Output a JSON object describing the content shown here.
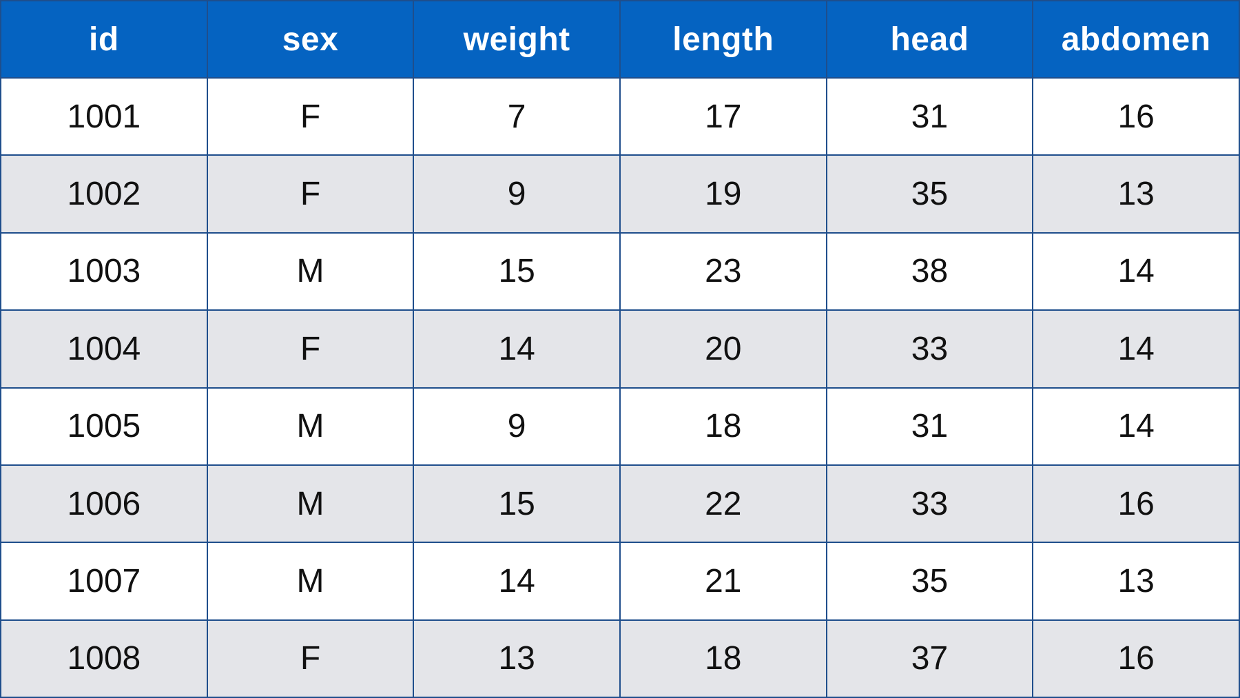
{
  "table": {
    "columns": [
      "id",
      "sex",
      "weight",
      "length",
      "head",
      "abdomen"
    ],
    "rows": [
      [
        "1001",
        "F",
        "7",
        "17",
        "31",
        "16"
      ],
      [
        "1002",
        "F",
        "9",
        "19",
        "35",
        "13"
      ],
      [
        "1003",
        "M",
        "15",
        "23",
        "38",
        "14"
      ],
      [
        "1004",
        "F",
        "14",
        "20",
        "33",
        "14"
      ],
      [
        "1005",
        "M",
        "9",
        "18",
        "31",
        "14"
      ],
      [
        "1006",
        "M",
        "15",
        "22",
        "33",
        "16"
      ],
      [
        "1007",
        "M",
        "14",
        "21",
        "35",
        "13"
      ],
      [
        "1008",
        "F",
        "13",
        "18",
        "37",
        "16"
      ]
    ]
  },
  "colors": {
    "header_bg": "#0563c1",
    "header_text": "#ffffff",
    "border": "#1f4e8c",
    "row_alt_bg": "#e4e5e9",
    "row_bg": "#ffffff"
  }
}
